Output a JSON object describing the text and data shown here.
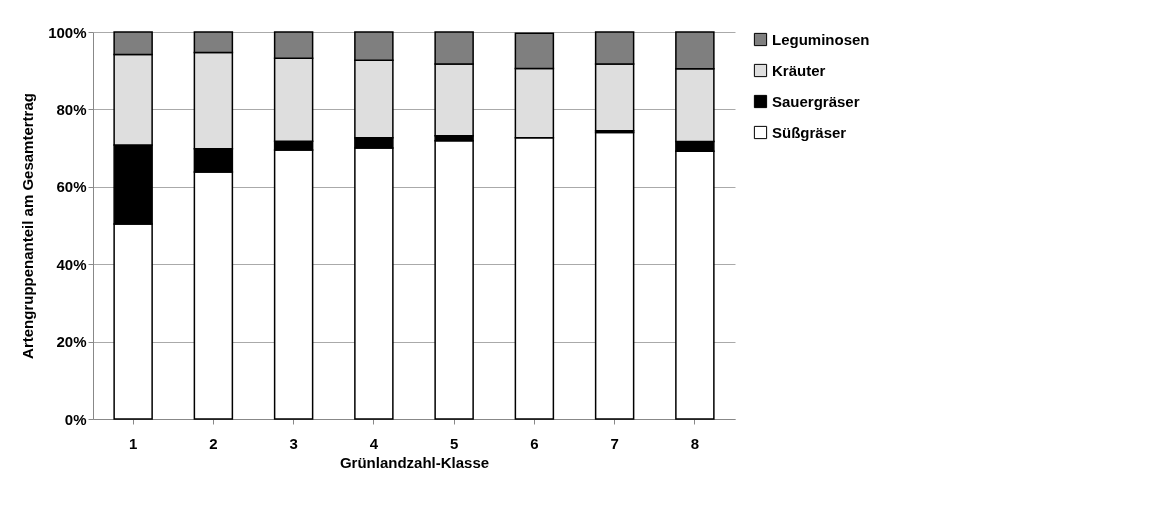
{
  "chart_data": {
    "type": "bar",
    "stacked": true,
    "xlabel": "Grünlandzahl-Klasse",
    "ylabel": "Artengruppenanteil am Gesamtertrag",
    "categories": [
      "1",
      "2",
      "3",
      "4",
      "5",
      "6",
      "7",
      "8"
    ],
    "series": [
      {
        "name": "Süßgräser",
        "color": "#ffffff",
        "values": [
          50.4,
          63.8,
          69.5,
          70.0,
          71.9,
          72.7,
          74.0,
          69.2
        ]
      },
      {
        "name": "Sauergräser",
        "color": "#000000",
        "values": [
          20.4,
          6.0,
          2.3,
          2.7,
          1.3,
          null,
          0.5,
          2.5
        ]
      },
      {
        "name": "Kräuter",
        "color": "#dedede",
        "values": [
          23.4,
          24.9,
          21.4,
          20.0,
          18.5,
          17.9,
          17.2,
          18.8
        ]
      },
      {
        "name": "Leguminosen",
        "color": "#7f7f7f",
        "values": [
          5.8,
          5.3,
          6.8,
          7.3,
          8.3,
          9.1,
          8.3,
          9.5
        ]
      }
    ],
    "ylim": [
      0,
      100
    ],
    "yticks": [
      {
        "value": 0,
        "label": "0%"
      },
      {
        "value": 20,
        "label": "20%"
      },
      {
        "value": 40,
        "label": "40%"
      },
      {
        "value": 60,
        "label": "60%"
      },
      {
        "value": 80,
        "label": "80%"
      },
      {
        "value": 100,
        "label": "100%"
      }
    ],
    "grid": "y",
    "legend": "right"
  }
}
